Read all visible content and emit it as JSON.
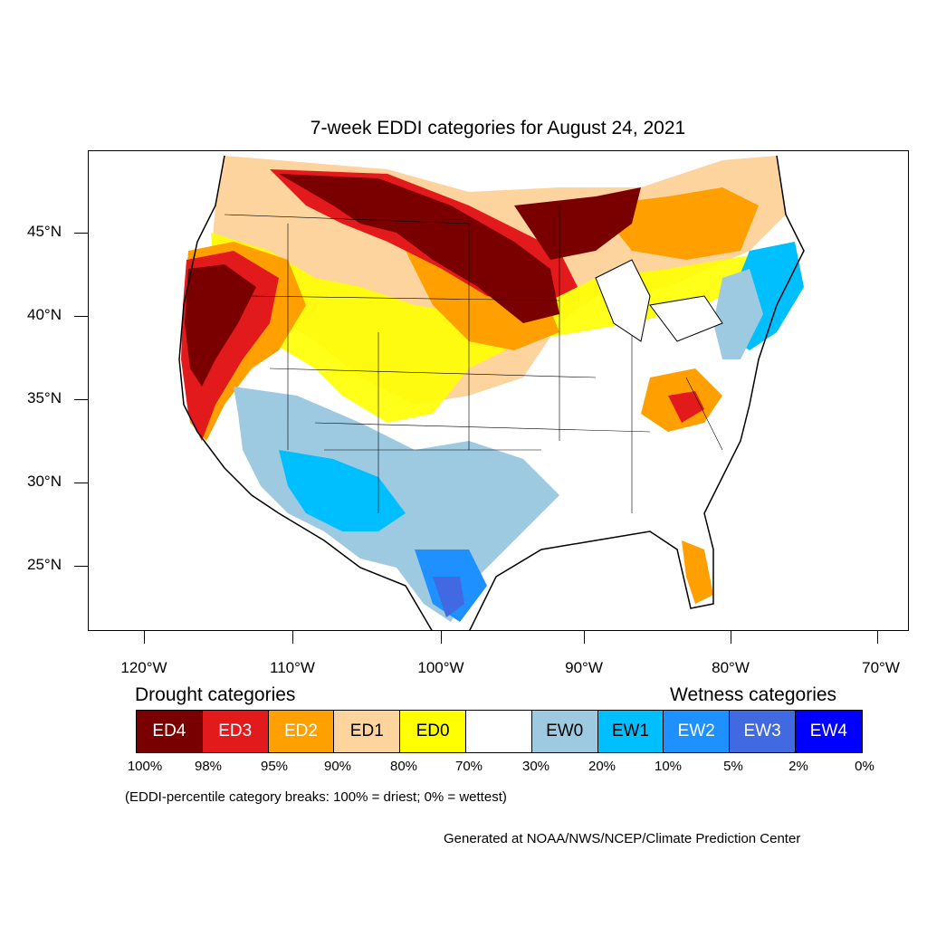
{
  "title": "7-week EDDI categories for August 24, 2021",
  "lat_axis": [
    "45°N",
    "40°N",
    "35°N",
    "30°N",
    "25°N"
  ],
  "lon_axis": [
    "120°W",
    "110°W",
    "100°W",
    "90°W",
    "80°W",
    "70°W"
  ],
  "drought_heading": "Drought categories",
  "wetness_heading": "Wetness categories",
  "legend": [
    {
      "label": "ED4",
      "color": "#7a0000",
      "text_color": "#ffffff"
    },
    {
      "label": "ED3",
      "color": "#e31a1c",
      "text_color": "#ffffff"
    },
    {
      "label": "ED2",
      "color": "#ff9f00",
      "text_color": "#ffffff"
    },
    {
      "label": "ED1",
      "color": "#fdd49e",
      "text_color": "#000000"
    },
    {
      "label": "ED0",
      "color": "#ffff00",
      "text_color": "#000000"
    },
    {
      "label": "",
      "color": "#ffffff",
      "text_color": "#000000"
    },
    {
      "label": "EW0",
      "color": "#9ecae1",
      "text_color": "#000000"
    },
    {
      "label": "EW1",
      "color": "#00bfff",
      "text_color": "#000000"
    },
    {
      "label": "EW2",
      "color": "#1e90ff",
      "text_color": "#ffffff"
    },
    {
      "label": "EW3",
      "color": "#4169e1",
      "text_color": "#ffffff"
    },
    {
      "label": "EW4",
      "color": "#0000ff",
      "text_color": "#ffffff"
    }
  ],
  "percent_breaks": [
    "100%",
    "98%",
    "95%",
    "90%",
    "80%",
    "70%",
    "30%",
    "20%",
    "10%",
    "5%",
    "2%",
    "0%"
  ],
  "note": "(EDDI-percentile category breaks: 100% = driest; 0% = wettest)",
  "credit": "Generated at NOAA/NWS/NCEP/Climate Prediction Center"
}
